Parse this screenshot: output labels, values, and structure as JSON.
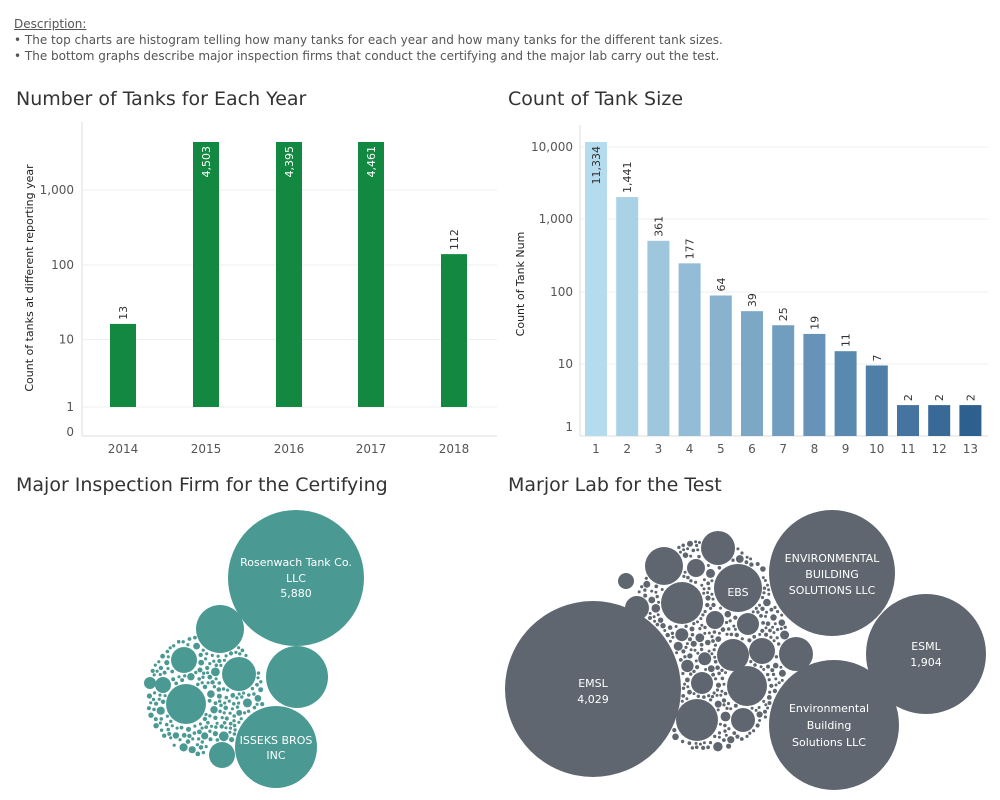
{
  "description": {
    "title": "Description:",
    "lines": [
      "• The top charts are histogram telling how many tanks for each year and how many tanks for the different tank sizes.",
      "• The bottom graphs describe major inspection firms that conduct the certifying and the major lab carry out the test."
    ]
  },
  "colors": {
    "year_bar": "#128840",
    "firm_bubble": "#4a9a93",
    "lab_bubble": "#5f6670",
    "size_bar_light": "#b5dcee",
    "size_bar_dark": "#2d5f8f"
  },
  "chart_data": [
    {
      "type": "bar",
      "title": "Number of Tanks for Each Year",
      "xlabel": "",
      "ylabel": "Count of tanks at different reporting year",
      "scale": "log",
      "categories": [
        "2014",
        "2015",
        "2016",
        "2017",
        "2018"
      ],
      "values": [
        13,
        4503,
        4395,
        4461,
        112
      ],
      "data_labels": [
        "13",
        "4,503",
        "4,395",
        "4,461",
        "112"
      ],
      "y_ticks": [
        "0",
        "1",
        "10",
        "100",
        "1,000"
      ],
      "grid": true
    },
    {
      "type": "bar",
      "title": "Count of Tank Size",
      "xlabel": "",
      "ylabel": "Count of Tank Num",
      "scale": "log",
      "categories": [
        "1",
        "2",
        "3",
        "4",
        "5",
        "6",
        "7",
        "8",
        "9",
        "10",
        "11",
        "12",
        "13"
      ],
      "values": [
        11334,
        1441,
        361,
        177,
        64,
        39,
        25,
        19,
        11,
        7,
        2,
        2,
        2
      ],
      "data_labels": [
        "11,334",
        "1,441",
        "361",
        "177",
        "64",
        "39",
        "25",
        "19",
        "11",
        "7",
        "2",
        "2",
        "2"
      ],
      "y_ticks": [
        "1",
        "10",
        "100",
        "1,000",
        "10,000"
      ],
      "grid": true
    },
    {
      "type": "bubble",
      "title": "Major Inspection Firm for the Certifying",
      "labeled_bubbles": [
        {
          "name": "Rosenwach Tank Co. LLC",
          "value": 5880,
          "value_label": "5,880"
        },
        {
          "name": "ISSEKS BROS INC",
          "value": null,
          "value_label": ""
        }
      ]
    },
    {
      "type": "bubble",
      "title": "Marjor Lab for the Test",
      "labeled_bubbles": [
        {
          "name": "EMSL",
          "value": 4029,
          "value_label": "4,029"
        },
        {
          "name": "ESML",
          "value": 1904,
          "value_label": "1,904"
        },
        {
          "name": "ENVIRONMENTAL BUILDING SOLUTIONS LLC",
          "value": null,
          "value_label": ""
        },
        {
          "name": "Environmental Building Solutions LLC",
          "value": null,
          "value_label": ""
        },
        {
          "name": "EBS",
          "value": null,
          "value_label": ""
        }
      ]
    }
  ]
}
